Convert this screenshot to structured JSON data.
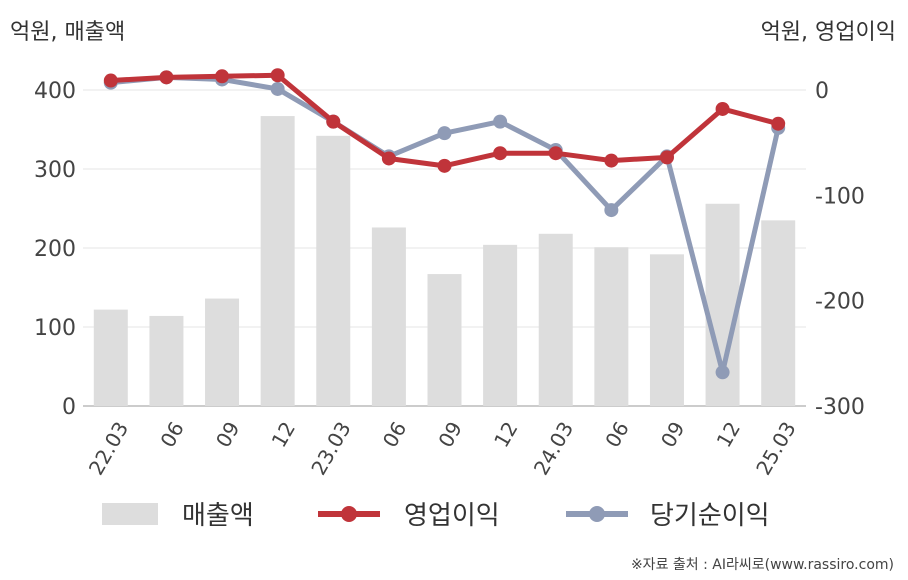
{
  "chart_data": {
    "type": "bar+line",
    "categories": [
      "22.03",
      "06",
      "09",
      "12",
      "23.03",
      "06",
      "09",
      "12",
      "24.03",
      "06",
      "09",
      "12",
      "25.03"
    ],
    "y_left_label": "억원, 매출액",
    "y_right_label": "억원, 영업이익",
    "y_left_range": [
      0,
      400
    ],
    "y_left_ticks": [
      0,
      100,
      200,
      300,
      400
    ],
    "y_right_range": [
      -300,
      0
    ],
    "y_right_ticks": [
      0,
      -100,
      -200,
      -300
    ],
    "series": [
      {
        "name": "매출액",
        "type": "bar",
        "axis": "left",
        "color": "#dddddd",
        "values": [
          122,
          114,
          136,
          367,
          342,
          226,
          167,
          204,
          218,
          201,
          192,
          256,
          235
        ]
      },
      {
        "name": "영업이익",
        "type": "line",
        "axis": "right",
        "color": "#c0343a",
        "values": [
          9,
          12,
          13,
          14,
          -30,
          -65,
          -72,
          -60,
          -60,
          -67,
          -64,
          -18,
          -32
        ]
      },
      {
        "name": "당기순이익",
        "type": "line",
        "axis": "right",
        "color": "#8f9bb6",
        "values": [
          7,
          12,
          10,
          1,
          -30,
          -63,
          -41,
          -30,
          -57,
          -114,
          -63,
          -268,
          -36
        ]
      }
    ],
    "grid": true,
    "legend_position": "bottom"
  },
  "source": "※자료 출처 : AI라씨로(www.rassiro.com)"
}
